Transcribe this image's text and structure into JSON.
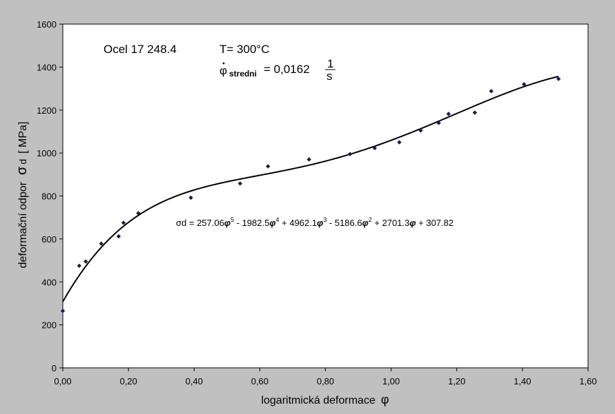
{
  "chart_data": {
    "type": "scatter",
    "xlabel": "logaritmická deformace",
    "xlabel_symbol": "φ",
    "ylabel": "deformační odpor",
    "ylabel_symbol": "σ",
    "ylabel_sub": "d",
    "ylabel_unit": "[ MPa]",
    "xlim": [
      0,
      1.6
    ],
    "ylim": [
      0,
      1600
    ],
    "x_ticks": [
      "0,00",
      "0,20",
      "0,40",
      "0,60",
      "0,80",
      "1,00",
      "1,20",
      "1,40",
      "1,60"
    ],
    "y_ticks": [
      "0",
      "200",
      "400",
      "600",
      "800",
      "1000",
      "1200",
      "1400",
      "1600"
    ],
    "grid": false,
    "legend": "none",
    "marker_color": "#1a1a5a",
    "line_color": "#000000",
    "annotations": {
      "material": "Ocel 17 248.4",
      "temperature": "T= 300°C",
      "strain_rate_symbol": "φ",
      "strain_rate_sub": "stredni",
      "strain_rate_value": "= 0,0162",
      "strain_rate_unit_num": "1",
      "strain_rate_unit_den": "s"
    },
    "equation": {
      "lhs": "σd = ",
      "terms": [
        {
          "coef": "257.06",
          "var": "φ",
          "exp": "5",
          "sep": " - "
        },
        {
          "coef": "1982.5",
          "var": "φ",
          "exp": "4",
          "sep": " + "
        },
        {
          "coef": "4962.1",
          "var": "φ",
          "exp": "3",
          "sep": " - "
        },
        {
          "coef": "5186.6",
          "var": "φ",
          "exp": "2",
          "sep": " + "
        },
        {
          "coef": "2701.3",
          "var": "φ",
          "exp": "",
          "sep": "  + "
        },
        {
          "coef": "307.82",
          "var": "",
          "exp": "",
          "sep": ""
        }
      ]
    },
    "trend_coefficients": [
      307.82,
      2701.3,
      -5186.6,
      4962.1,
      -1982.5,
      257.06
    ],
    "series": [
      {
        "points": [
          {
            "x": 0.0,
            "y": 265
          },
          {
            "x": 0.05,
            "y": 475
          },
          {
            "x": 0.07,
            "y": 495
          },
          {
            "x": 0.117,
            "y": 578
          },
          {
            "x": 0.17,
            "y": 612
          },
          {
            "x": 0.185,
            "y": 675
          },
          {
            "x": 0.23,
            "y": 720
          },
          {
            "x": 0.39,
            "y": 792
          },
          {
            "x": 0.54,
            "y": 858
          },
          {
            "x": 0.625,
            "y": 938
          },
          {
            "x": 0.75,
            "y": 970
          },
          {
            "x": 0.875,
            "y": 995
          },
          {
            "x": 0.95,
            "y": 1023
          },
          {
            "x": 1.025,
            "y": 1050
          },
          {
            "x": 1.09,
            "y": 1105
          },
          {
            "x": 1.145,
            "y": 1140
          },
          {
            "x": 1.175,
            "y": 1182
          },
          {
            "x": 1.255,
            "y": 1188
          },
          {
            "x": 1.305,
            "y": 1288
          },
          {
            "x": 1.405,
            "y": 1320
          },
          {
            "x": 1.51,
            "y": 1345
          }
        ]
      }
    ]
  }
}
